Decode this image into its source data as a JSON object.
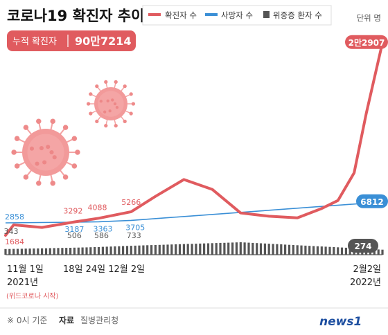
{
  "title": "코로나19 확진자 추이",
  "cumulative": {
    "label": "누적 확진자",
    "value": "90만7214"
  },
  "legend": [
    {
      "label": "확진자 수",
      "color": "#e05b5f"
    },
    {
      "label": "사망자 수",
      "color": "#3a8fd6"
    },
    {
      "label": "위중증 환자 수",
      "color": "#555555"
    }
  ],
  "unit": "단위 명",
  "x_labels": {
    "start_date": "11월 1일",
    "start_year": "2021년",
    "start_note": "(위드코로나 시작)",
    "mid": "18일 24일 12월 2일",
    "end_date": "2월2일",
    "end_year": "2022년"
  },
  "footer": {
    "note": "※ 0시 기준",
    "source_label": "자료",
    "source": "질병관리청",
    "brand": "news1"
  },
  "colors": {
    "cases": "#e05b5f",
    "deaths": "#3a8fd6",
    "critical": "#555555",
    "decor": "#f08b8b"
  },
  "chart_data": {
    "type": "line",
    "x_range": [
      "2021-11-01",
      "2022-02-02"
    ],
    "series": [
      {
        "name": "확진자 수",
        "points": [
          {
            "x": "2021-11-01",
            "y": 1684,
            "label": "1684"
          },
          {
            "x": "2021-11-03",
            "y": 2667
          },
          {
            "x": "2021-11-10",
            "y": 2425
          },
          {
            "x": "2021-11-18",
            "y": 3292,
            "label": "3292"
          },
          {
            "x": "2021-11-24",
            "y": 4088,
            "label": "4088"
          },
          {
            "x": "2021-12-02",
            "y": 5266,
            "label": "5266"
          },
          {
            "x": "2021-12-08",
            "y": 7174
          },
          {
            "x": "2021-12-15",
            "y": 7850
          },
          {
            "x": "2021-12-22",
            "y": 7456
          },
          {
            "x": "2021-12-29",
            "y": 5035
          },
          {
            "x": "2022-01-05",
            "y": 4444
          },
          {
            "x": "2022-01-12",
            "y": 4167
          },
          {
            "x": "2022-01-18",
            "y": 5805
          },
          {
            "x": "2022-01-22",
            "y": 7009
          },
          {
            "x": "2022-01-26",
            "y": 13012
          },
          {
            "x": "2022-01-29",
            "y": 17528
          },
          {
            "x": "2022-02-02",
            "y": 22907,
            "label": "2만2907"
          }
        ]
      },
      {
        "name": "사망자 수",
        "points": [
          {
            "x": "2021-11-01",
            "y": 2858,
            "label": "2858"
          },
          {
            "x": "2021-11-18",
            "y": 3187,
            "label": "3187"
          },
          {
            "x": "2021-11-24",
            "y": 3363,
            "label": "3363"
          },
          {
            "x": "2021-12-02",
            "y": 3705,
            "label": "3705"
          },
          {
            "x": "2022-02-02",
            "y": 6812,
            "label": "6812"
          }
        ]
      },
      {
        "name": "위중증 환자 수",
        "points": [
          {
            "x": "2021-11-01",
            "y": 343,
            "label": "343"
          },
          {
            "x": "2021-11-18",
            "y": 506,
            "label": "506"
          },
          {
            "x": "2021-11-24",
            "y": 586,
            "label": "586"
          },
          {
            "x": "2021-12-02",
            "y": 733,
            "label": "733"
          },
          {
            "x": "2021-12-29",
            "y": 1151
          },
          {
            "x": "2022-02-02",
            "y": 274,
            "label": "274"
          }
        ]
      }
    ]
  }
}
